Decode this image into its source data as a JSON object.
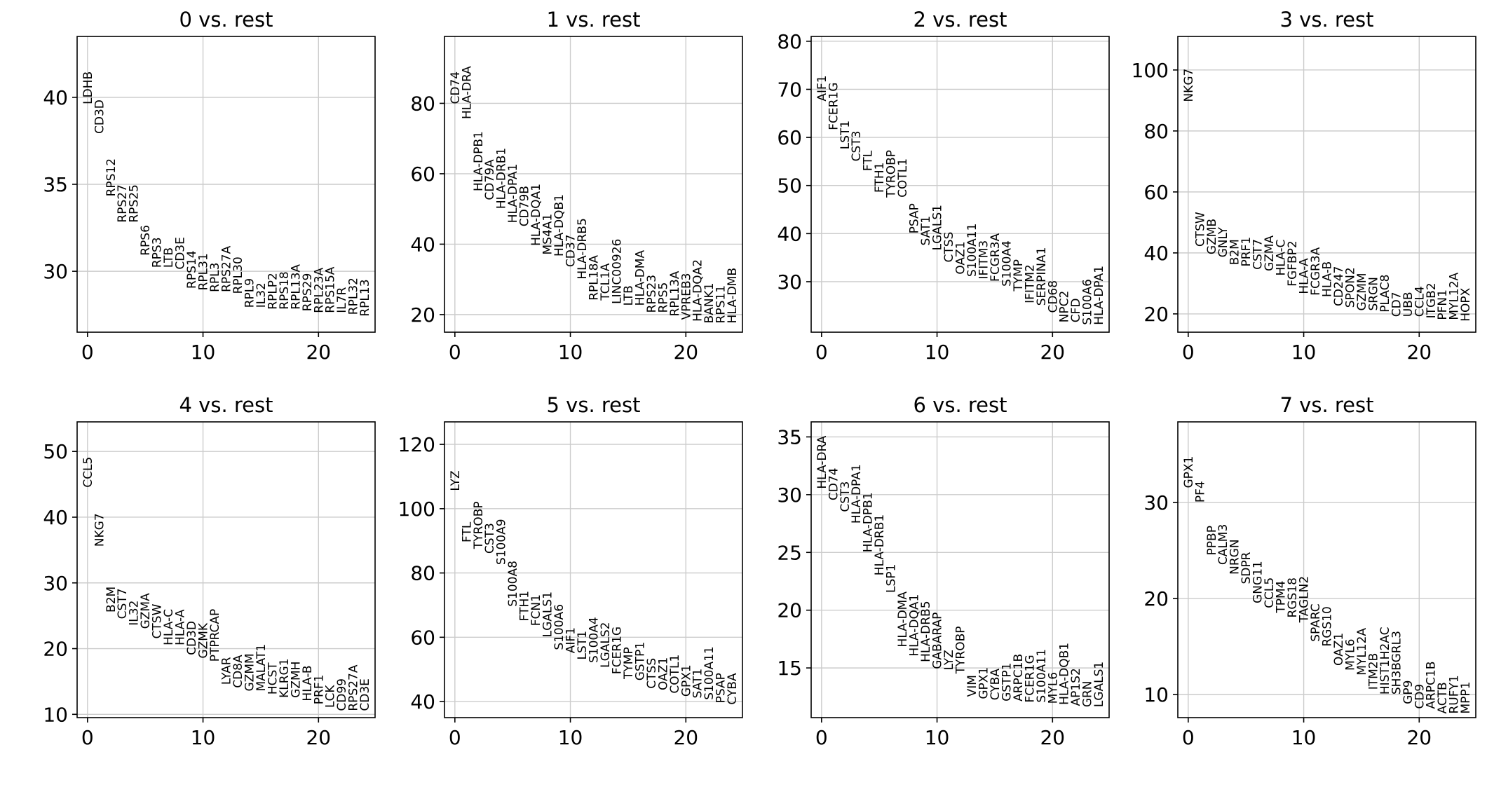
{
  "chart_data": [
    {
      "type": "scatter",
      "title": "0 vs. rest",
      "xlim": [
        -0.9,
        24.9
      ],
      "ylim": [
        26.5,
        43.5
      ],
      "xticks": [
        0,
        10,
        20
      ],
      "yticks": [
        30,
        35,
        40
      ],
      "grid": true,
      "genes": [
        "LDHB",
        "CD3D",
        "RPS12",
        "RPS27",
        "RPS25",
        "RPS6",
        "RPS3",
        "LTB",
        "CD3E",
        "RPS14",
        "RPL31",
        "RPL3",
        "RPS27A",
        "RPL30",
        "RPL9",
        "IL32",
        "RPLP2",
        "RPS18",
        "RPL13A",
        "RPS29",
        "RPL23A",
        "RPS15A",
        "IL7R",
        "RPL32",
        "RPL13"
      ],
      "scores": [
        39.6,
        37.9,
        34.3,
        32.8,
        32.8,
        30.9,
        30.2,
        30.2,
        30.1,
        29.0,
        28.9,
        28.8,
        28.8,
        28.7,
        27.9,
        27.9,
        27.8,
        27.8,
        27.8,
        27.7,
        27.6,
        27.6,
        27.6,
        27.5,
        27.4
      ]
    },
    {
      "type": "scatter",
      "title": "1 vs. rest",
      "xlim": [
        -0.9,
        24.9
      ],
      "ylim": [
        15,
        99
      ],
      "xticks": [
        0,
        10,
        20
      ],
      "yticks": [
        20,
        40,
        60,
        80
      ],
      "grid": true,
      "genes": [
        "CD74",
        "HLA-DRA",
        "HLA-DPB1",
        "CD79A",
        "HLA-DRB1",
        "HLA-DPA1",
        "CD79B",
        "HLA-DQA1",
        "MS4A1",
        "HLA-DQB1",
        "CD37",
        "HLA-DRB5",
        "RPL18A",
        "TCL1A",
        "LINC00926",
        "LTB",
        "HLA-DMA",
        "RPS23",
        "RPS5",
        "RPL13A",
        "VPREB3",
        "HLA-DQA2",
        "BANK1",
        "RPS11",
        "HLA-DMB"
      ],
      "scores": [
        79.8,
        75.5,
        55.0,
        52.5,
        50.0,
        46.0,
        45.0,
        39.5,
        37.0,
        36.5,
        33.5,
        30.0,
        24.0,
        24.0,
        23.0,
        22.5,
        22.5,
        20.5,
        20.5,
        19.5,
        18.5,
        18.0,
        17.5,
        17.5,
        17.5
      ]
    },
    {
      "type": "scatter",
      "title": "2 vs. rest",
      "xlim": [
        -0.9,
        24.9
      ],
      "ylim": [
        19.5,
        81
      ],
      "xticks": [
        0,
        10,
        20
      ],
      "yticks": [
        30,
        40,
        50,
        60,
        70,
        80
      ],
      "grid": true,
      "genes": [
        "AIF1",
        "FCER1G",
        "LST1",
        "CST3",
        "FTL",
        "FTH1",
        "TYROBP",
        "COTL1",
        "PSAP",
        "SAT1",
        "LGALS1",
        "CTSS",
        "OAZ1",
        "S100A11",
        "IFITM3",
        "FCGR3A",
        "S100A4",
        "TYMP",
        "IFITM2",
        "SERPINA1",
        "CD68",
        "NPC2",
        "CFD",
        "S100A6",
        "HLA-DPA1"
      ],
      "scores": [
        67.5,
        61.5,
        57.5,
        55.0,
        53.0,
        48.5,
        47.5,
        47.5,
        40.0,
        37.5,
        36.5,
        34.0,
        31.5,
        31.0,
        30.5,
        30.0,
        29.0,
        28.0,
        25.5,
        25.0,
        23.5,
        21.5,
        21.5,
        21.0,
        21.0
      ]
    },
    {
      "type": "scatter",
      "title": "3 vs. rest",
      "xlim": [
        -0.9,
        24.9
      ],
      "ylim": [
        14,
        111
      ],
      "xticks": [
        0,
        10,
        20
      ],
      "yticks": [
        20,
        40,
        60,
        80,
        100
      ],
      "grid": true,
      "genes": [
        "NKG7",
        "CTSW",
        "GZMB",
        "GNLY",
        "B2M",
        "PRF1",
        "CST7",
        "GZMA",
        "HLA-C",
        "FGFBP2",
        "HLA-A",
        "FCGR3A",
        "HLA-B",
        "CD247",
        "SPON2",
        "GZMM",
        "SRGN",
        "PLAC8",
        "CD7",
        "UBB",
        "CCL4",
        "ITGB2",
        "PFN1",
        "MYL12A",
        "HOPX"
      ],
      "scores": [
        89.5,
        42.0,
        39.5,
        38.5,
        36.0,
        35.5,
        34.5,
        34.0,
        32.5,
        29.0,
        26.5,
        26.0,
        25.5,
        22.5,
        22.0,
        21.0,
        21.0,
        20.5,
        19.0,
        19.0,
        19.0,
        18.5,
        18.0,
        18.0,
        17.5
      ]
    },
    {
      "type": "scatter",
      "title": "4 vs. rest",
      "xlim": [
        -0.9,
        24.9
      ],
      "ylim": [
        9.5,
        54.5
      ],
      "xticks": [
        0,
        10,
        20
      ],
      "yticks": [
        10,
        20,
        30,
        40,
        50
      ],
      "grid": true,
      "genes": [
        "CCL5",
        "NKG7",
        "B2M",
        "CST7",
        "IL32",
        "GZMA",
        "CTSW",
        "HLA-C",
        "HLA-A",
        "CD3D",
        "GZMK",
        "PTPRCAP",
        "LYAR",
        "CD8A",
        "GZMM",
        "MALAT1",
        "HCST",
        "KLRG1",
        "GZMH",
        "HLA-B",
        "PRF1",
        "LCK",
        "CD99",
        "RPS27A",
        "CD3E"
      ],
      "scores": [
        44.5,
        35.5,
        25.5,
        24.5,
        23.5,
        23.0,
        21.5,
        20.5,
        20.5,
        19.0,
        18.5,
        18.0,
        14.5,
        14.0,
        13.5,
        13.5,
        13.0,
        12.5,
        12.5,
        12.0,
        11.5,
        11.0,
        10.5,
        10.5,
        10.5
      ]
    },
    {
      "type": "scatter",
      "title": "5 vs. rest",
      "xlim": [
        -0.9,
        24.9
      ],
      "ylim": [
        35,
        127
      ],
      "xticks": [
        0,
        10,
        20
      ],
      "yticks": [
        40,
        60,
        80,
        100,
        120
      ],
      "grid": true,
      "genes": [
        "LYZ",
        "FTL",
        "TYROBP",
        "CST3",
        "S100A9",
        "S100A8",
        "FTH1",
        "FCN1",
        "LGALS1",
        "S100A6",
        "AIF1",
        "LST1",
        "S100A4",
        "LGALS2",
        "FCER1G",
        "TYMP",
        "GSTP1",
        "CTSS",
        "OAZ1",
        "COTL1",
        "GPX1",
        "SAT1",
        "S100A11",
        "PSAP",
        "CYBA"
      ],
      "scores": [
        105.5,
        89.5,
        87.5,
        86.0,
        82.5,
        69.5,
        65.0,
        63.5,
        60.0,
        56.0,
        55.0,
        53.0,
        52.0,
        50.5,
        48.5,
        47.0,
        46.5,
        44.0,
        43.5,
        42.5,
        41.5,
        41.0,
        40.5,
        39.5,
        39.0
      ]
    },
    {
      "type": "scatter",
      "title": "6 vs. rest",
      "xlim": [
        -0.9,
        24.9
      ],
      "ylim": [
        10.7,
        36.3
      ],
      "xticks": [
        0,
        10,
        20
      ],
      "yticks": [
        15,
        20,
        25,
        30,
        35
      ],
      "grid": true,
      "genes": [
        "HLA-DRA",
        "CD74",
        "CST3",
        "HLA-DPA1",
        "HLA-DPB1",
        "HLA-DRB1",
        "LSP1",
        "HLA-DMA",
        "HLA-DQA1",
        "HLA-DRB5",
        "GABARAP",
        "LYZ",
        "TYROBP",
        "VIM",
        "GPX1",
        "CYBA",
        "GSTP1",
        "ARPC1B",
        "FCER1G",
        "S100A11",
        "MYL6",
        "HLA-DQB1",
        "AP1S2",
        "GRN",
        "LGALS1"
      ],
      "scores": [
        30.5,
        29.5,
        28.5,
        27.5,
        25.0,
        23.0,
        21.5,
        16.8,
        16.0,
        15.5,
        14.9,
        14.8,
        14.5,
        12.5,
        12.3,
        12.2,
        12.1,
        12.1,
        12.0,
        12.0,
        11.9,
        11.8,
        11.7,
        11.6,
        11.6
      ]
    },
    {
      "type": "scatter",
      "title": "7 vs. rest",
      "xlim": [
        -0.9,
        24.9
      ],
      "ylim": [
        7.6,
        38.4
      ],
      "xticks": [
        0,
        10,
        20
      ],
      "yticks": [
        10,
        20,
        30
      ],
      "grid": true,
      "genes": [
        "GPX1",
        "PF4",
        "PPBP",
        "CALM3",
        "NRGN",
        "SDPR",
        "GNG11",
        "CCL5",
        "TPM4",
        "RGS18",
        "TAGLN2",
        "SPARC",
        "RGS10",
        "OAZ1",
        "MYL6",
        "MYL12A",
        "ITM2B",
        "HIST1H2AC",
        "SH3BGRL3",
        "GP9",
        "CD9",
        "ARPC1B",
        "ACTB",
        "RUFY1",
        "MPP1"
      ],
      "scores": [
        31.5,
        30.0,
        24.5,
        23.5,
        22.5,
        21.5,
        19.5,
        19.0,
        18.5,
        18.0,
        17.5,
        15.5,
        15.0,
        13.0,
        12.5,
        12.0,
        10.5,
        10.0,
        10.0,
        9.0,
        8.5,
        8.5,
        8.0,
        8.0,
        8.0
      ]
    }
  ]
}
